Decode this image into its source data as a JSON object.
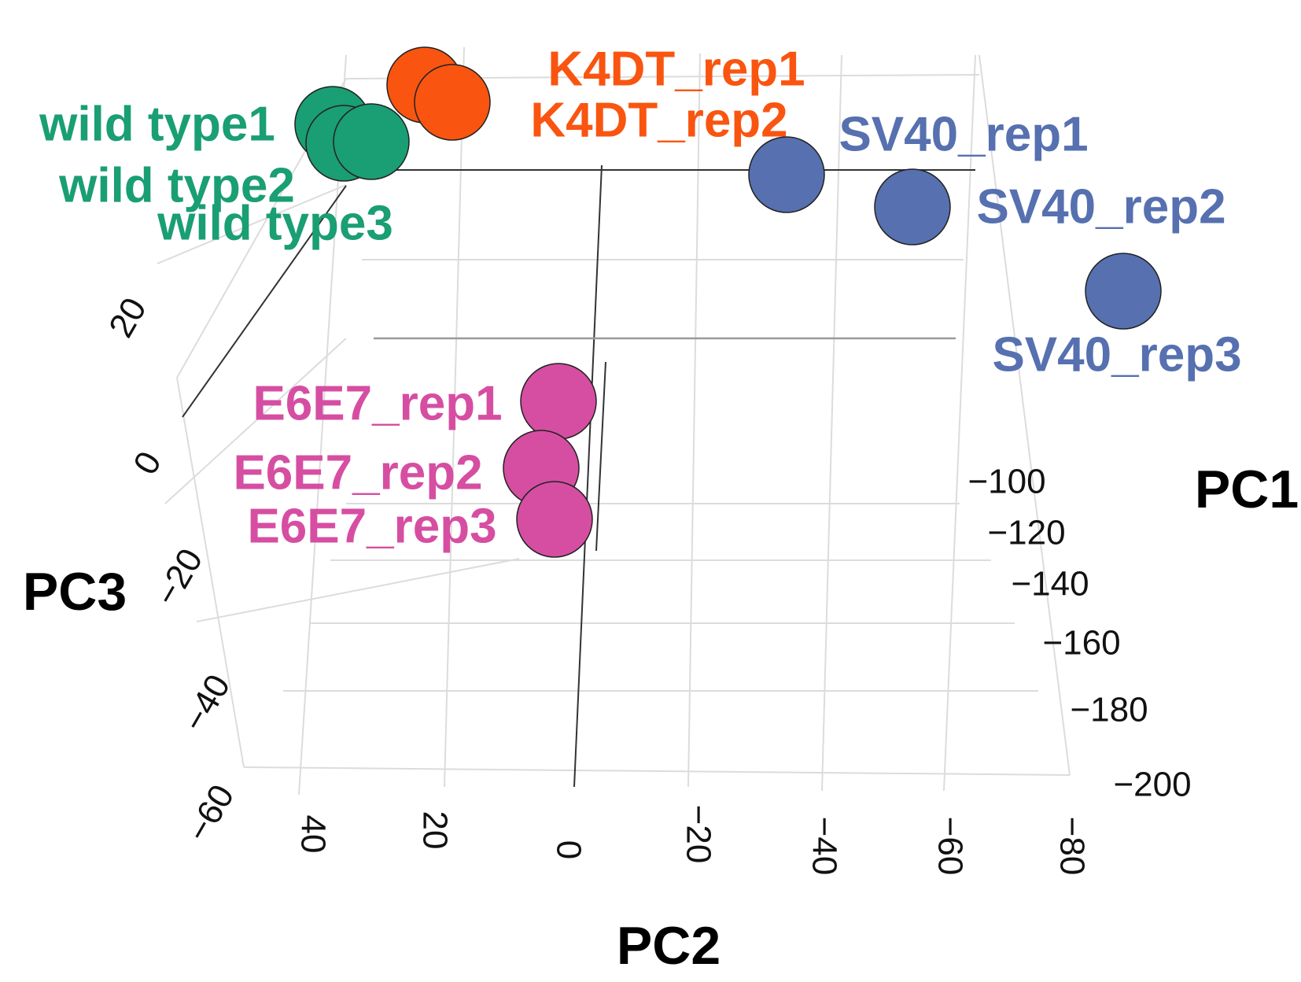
{
  "chart_data": {
    "type": "scatter",
    "projection": "3d",
    "axes": {
      "x": {
        "label": "PC2",
        "ticks": [
          "40",
          "20",
          "0",
          "−20",
          "−40",
          "−60",
          "−80"
        ]
      },
      "y": {
        "label": "PC1",
        "ticks": [
          "−100",
          "−120",
          "−140",
          "−160",
          "−180",
          "−200"
        ]
      },
      "z": {
        "label": "PC3",
        "ticks": [
          "20",
          "0",
          "−20",
          "−40",
          "−60"
        ]
      }
    },
    "grid": true,
    "colors": {
      "wild_type": "#1a9e74",
      "K4DT": "#f95510",
      "SV40": "#5670b0",
      "E6E7": "#d64ea2"
    },
    "series": [
      {
        "group": "wild_type",
        "points": [
          {
            "label": "wild type1"
          },
          {
            "label": "wild type2"
          },
          {
            "label": "wild type3"
          }
        ]
      },
      {
        "group": "K4DT",
        "points": [
          {
            "label": "K4DT_rep1"
          },
          {
            "label": "K4DT_rep2"
          }
        ]
      },
      {
        "group": "SV40",
        "points": [
          {
            "label": "SV40_rep1"
          },
          {
            "label": "SV40_rep2"
          },
          {
            "label": "SV40_rep3"
          }
        ]
      },
      {
        "group": "E6E7",
        "points": [
          {
            "label": "E6E7_rep1"
          },
          {
            "label": "E6E7_rep2"
          },
          {
            "label": "E6E7_rep3"
          }
        ]
      }
    ]
  }
}
